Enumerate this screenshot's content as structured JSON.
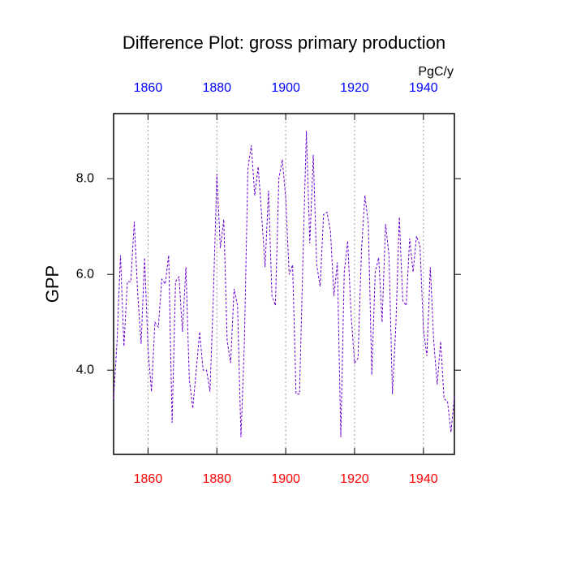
{
  "chart_data": {
    "type": "line",
    "title": "Difference Plot: gross primary production",
    "y_label": "GPP",
    "units": "PgC/y",
    "x": [
      1850,
      1851,
      1852,
      1853,
      1854,
      1855,
      1856,
      1857,
      1858,
      1859,
      1860,
      1861,
      1862,
      1863,
      1864,
      1865,
      1866,
      1867,
      1868,
      1869,
      1870,
      1871,
      1872,
      1873,
      1874,
      1875,
      1876,
      1877,
      1878,
      1879,
      1880,
      1881,
      1882,
      1883,
      1884,
      1885,
      1886,
      1887,
      1888,
      1889,
      1890,
      1891,
      1892,
      1893,
      1894,
      1895,
      1896,
      1897,
      1898,
      1899,
      1900,
      1901,
      1902,
      1903,
      1904,
      1905,
      1906,
      1907,
      1908,
      1909,
      1910,
      1911,
      1912,
      1913,
      1914,
      1915,
      1916,
      1917,
      1918,
      1919,
      1920,
      1921,
      1922,
      1923,
      1924,
      1925,
      1926,
      1927,
      1928,
      1929,
      1930,
      1931,
      1932,
      1933,
      1934,
      1935,
      1936,
      1937,
      1938,
      1939,
      1940,
      1941,
      1942,
      1943,
      1944,
      1945,
      1946,
      1947,
      1948,
      1949
    ],
    "series": [
      {
        "color": "#6a00d0",
        "dashed": true,
        "values": [
          3.4,
          4.6,
          6.4,
          4.5,
          5.85,
          5.85,
          7.1,
          5.6,
          4.55,
          6.35,
          4.45,
          3.55,
          5.0,
          4.9,
          5.9,
          5.8,
          6.4,
          2.9,
          5.85,
          5.95,
          4.8,
          6.15,
          3.8,
          3.2,
          4.0,
          4.8,
          4.0,
          4.0,
          3.55,
          5.6,
          8.1,
          6.55,
          7.15,
          4.6,
          4.15,
          5.7,
          5.35,
          2.6,
          4.6,
          8.2,
          8.7,
          7.65,
          8.25,
          7.25,
          6.15,
          7.75,
          5.55,
          5.35,
          8.0,
          8.4,
          7.6,
          6.0,
          6.2,
          3.5,
          3.5,
          6.3,
          9.0,
          6.65,
          8.5,
          6.2,
          5.75,
          7.25,
          7.3,
          6.9,
          5.55,
          6.25,
          2.6,
          6.05,
          6.7,
          5.15,
          4.15,
          4.25,
          6.5,
          7.65,
          7.05,
          3.9,
          6.05,
          6.35,
          5.0,
          7.05,
          6.4,
          3.5,
          4.95,
          7.2,
          5.45,
          5.35,
          6.75,
          6.05,
          6.8,
          6.6,
          4.85,
          4.3,
          6.15,
          4.6,
          3.7,
          4.6,
          3.4,
          3.35,
          2.7,
          3.45
        ]
      }
    ],
    "xlim": [
      1850,
      1949
    ],
    "ylim": [
      2.24,
      9.36
    ],
    "xticks": [
      1860,
      1880,
      1900,
      1920,
      1940
    ],
    "yticks": [
      {
        "value": 4,
        "label": "4.0"
      },
      {
        "value": 6,
        "label": "6.0"
      },
      {
        "value": 8,
        "label": "8.0"
      }
    ],
    "x_grid": true,
    "top_tick_color": "#0000ff",
    "bottom_tick_color": "#ff0000"
  }
}
